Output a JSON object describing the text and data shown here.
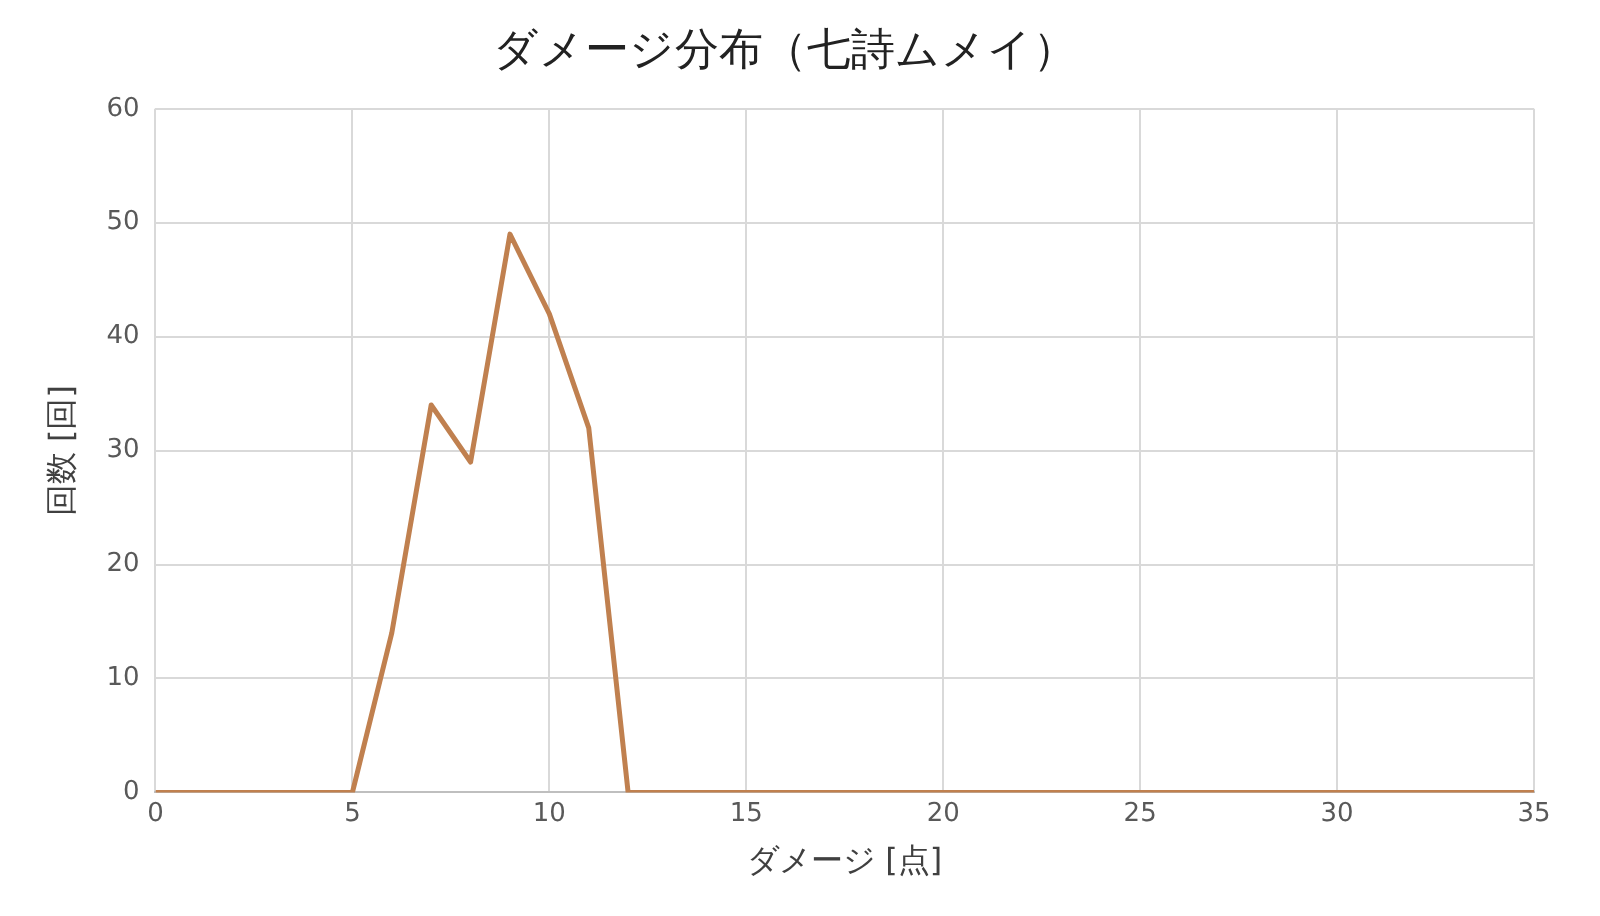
{
  "chart_data": {
    "type": "line",
    "title": "ダメージ分布（七詩ムメイ）",
    "xlabel": "ダメージ [点]",
    "ylabel": "回数 [回]",
    "x": [
      0,
      1,
      2,
      3,
      4,
      5,
      6,
      7,
      8,
      9,
      10,
      11,
      12,
      13,
      14,
      15,
      16,
      17,
      18,
      19,
      20,
      21,
      22,
      23,
      24,
      25,
      26,
      27,
      28,
      29,
      30,
      31,
      32,
      33,
      34,
      35
    ],
    "series": [
      {
        "color": "#c0804f",
        "values": [
          0,
          0,
          0,
          0,
          0,
          0,
          14,
          34,
          29,
          49,
          42,
          32,
          0,
          0,
          0,
          0,
          0,
          0,
          0,
          0,
          0,
          0,
          0,
          0,
          0,
          0,
          0,
          0,
          0,
          0,
          0,
          0,
          0,
          0,
          0,
          0
        ]
      }
    ],
    "xlim": [
      0,
      35
    ],
    "xticks": [
      0,
      5,
      10,
      15,
      20,
      25,
      30,
      35
    ],
    "ylim": [
      0,
      60
    ],
    "yticks": [
      0,
      10,
      20,
      30,
      40,
      50,
      60
    ],
    "grid": true,
    "legend": false,
    "marker": "none",
    "line_style": "solid"
  }
}
